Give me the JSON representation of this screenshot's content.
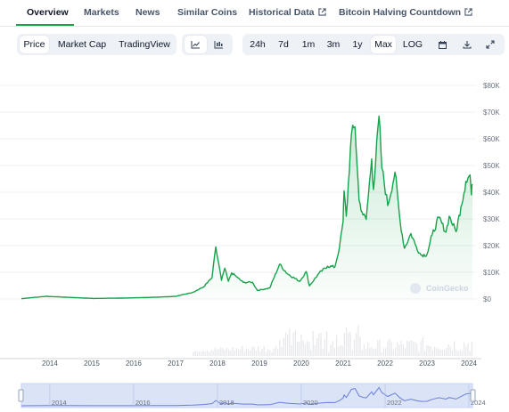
{
  "nav": {
    "tabs": [
      {
        "label": "Overview",
        "active": true
      },
      {
        "label": "Markets"
      },
      {
        "label": "News"
      },
      {
        "label": "Similar Coins"
      },
      {
        "label": "Historical Data",
        "external": true
      },
      {
        "label": "Bitcoin Halving Countdown",
        "external": true
      }
    ]
  },
  "toolbar": {
    "chart_modes": [
      "Price",
      "Market Cap",
      "TradingView"
    ],
    "active_mode": "Price",
    "chart_style_icons": [
      "line-chart-icon",
      "candlestick-icon"
    ],
    "ranges": [
      "24h",
      "7d",
      "1m",
      "3m",
      "1y",
      "Max"
    ],
    "active_range": "Max",
    "log_label": "LOG",
    "action_icons": [
      "calendar-icon",
      "download-icon",
      "expand-icon"
    ]
  },
  "watermark": "CoinGecko",
  "colors": {
    "accent": "#16a34a",
    "line": "#16a34a",
    "navigator": "#c7d2fe",
    "navigator_line": "#6b7fd7"
  },
  "chart_data": {
    "type": "line",
    "series": [
      {
        "points": [
          [
            "2013-04-28",
            135
          ],
          [
            "2013-11-30",
            1000
          ],
          [
            "2014-06-01",
            650
          ],
          [
            "2015-01-15",
            200
          ],
          [
            "2015-12-01",
            400
          ],
          [
            "2016-07-01",
            650
          ],
          [
            "2017-01-01",
            1000
          ],
          [
            "2017-06-01",
            2500
          ],
          [
            "2017-09-01",
            4500
          ],
          [
            "2017-11-15",
            8000
          ],
          [
            "2017-12-17",
            19500
          ],
          [
            "2018-02-05",
            7000
          ],
          [
            "2018-03-05",
            11500
          ],
          [
            "2018-04-06",
            6600
          ],
          [
            "2018-05-05",
            9800
          ],
          [
            "2018-08-14",
            6200
          ],
          [
            "2018-11-01",
            6300
          ],
          [
            "2018-12-15",
            3200
          ],
          [
            "2019-04-01",
            4100
          ],
          [
            "2019-06-26",
            13000
          ],
          [
            "2019-09-01",
            9500
          ],
          [
            "2019-12-18",
            6600
          ],
          [
            "2020-02-14",
            10300
          ],
          [
            "2020-03-12",
            4900
          ],
          [
            "2020-06-01",
            9500
          ],
          [
            "2020-08-17",
            12300
          ],
          [
            "2020-10-20",
            12000
          ],
          [
            "2020-11-30",
            19500
          ],
          [
            "2020-12-31",
            29000
          ],
          [
            "2021-01-08",
            40500
          ],
          [
            "2021-01-28",
            31000
          ],
          [
            "2021-03-13",
            61500
          ],
          [
            "2021-04-14",
            64500
          ],
          [
            "2021-05-19",
            37000
          ],
          [
            "2021-06-22",
            31500
          ],
          [
            "2021-07-20",
            29800
          ],
          [
            "2021-09-06",
            52500
          ],
          [
            "2021-09-21",
            41000
          ],
          [
            "2021-11-09",
            68500
          ],
          [
            "2021-12-04",
            49000
          ],
          [
            "2022-01-24",
            35000
          ],
          [
            "2022-03-28",
            47500
          ],
          [
            "2022-05-12",
            29000
          ],
          [
            "2022-06-18",
            19000
          ],
          [
            "2022-08-14",
            24500
          ],
          [
            "2022-09-30",
            19500
          ],
          [
            "2022-11-09",
            16500
          ],
          [
            "2022-12-31",
            16600
          ],
          [
            "2023-02-15",
            24000
          ],
          [
            "2023-04-14",
            30500
          ],
          [
            "2023-06-15",
            25000
          ],
          [
            "2023-07-13",
            31000
          ],
          [
            "2023-09-11",
            25200
          ],
          [
            "2023-10-24",
            34500
          ],
          [
            "2023-12-05",
            44000
          ],
          [
            "2024-01-11",
            46500
          ],
          [
            "2024-01-23",
            39000
          ],
          [
            "2024-02-01",
            43000
          ]
        ]
      }
    ],
    "yticks": [
      "$0",
      "$10K",
      "$20K",
      "$30K",
      "$40K",
      "$50K",
      "$60K",
      "$70K",
      "$80K"
    ],
    "ylim": [
      0,
      80000
    ],
    "xticks": [
      "2014",
      "2015",
      "2016",
      "2017",
      "2018",
      "2019",
      "2020",
      "2021",
      "2022",
      "2023",
      "2024"
    ],
    "navigator_ticks": [
      "2014",
      "2016",
      "2018",
      "2020",
      "2022",
      "2024"
    ],
    "x_range": [
      "2013-04-28",
      "2024-02-01"
    ],
    "has_volume": true,
    "has_navigator": true
  }
}
